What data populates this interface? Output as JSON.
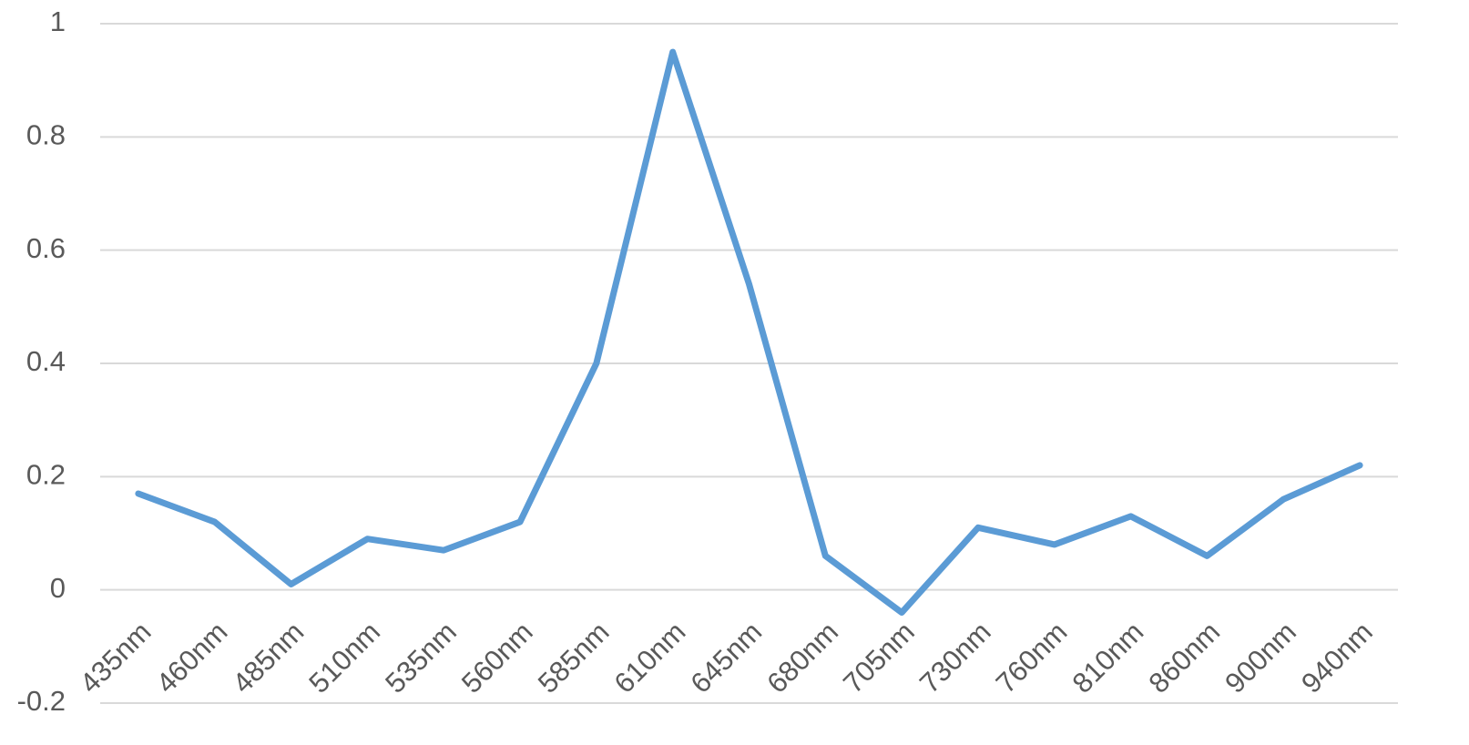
{
  "chart_data": {
    "type": "line",
    "categories": [
      "435nm",
      "460nm",
      "485nm",
      "510nm",
      "535nm",
      "560nm",
      "585nm",
      "610nm",
      "645nm",
      "680nm",
      "705nm",
      "730nm",
      "760nm",
      "810nm",
      "860nm",
      "900nm",
      "940nm"
    ],
    "series": [
      {
        "color": "#5b9bd5",
        "values": [
          0.17,
          0.12,
          0.01,
          0.09,
          0.07,
          0.12,
          0.4,
          0.95,
          0.54,
          0.06,
          -0.04,
          0.11,
          0.08,
          0.13,
          0.06,
          0.16,
          0.22
        ]
      }
    ],
    "ylim": [
      -0.2,
      1
    ],
    "yticks": [
      -0.2,
      0,
      0.2,
      0.4,
      0.6,
      0.8,
      1
    ],
    "grid": true
  }
}
